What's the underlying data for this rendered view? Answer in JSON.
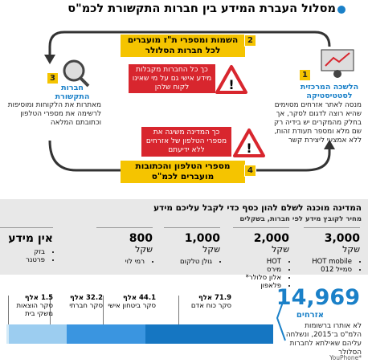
{
  "header": {
    "title": "מסלול העברת המידע בין חברות התקשורת לכמ\"ס"
  },
  "flow": {
    "step1": {
      "number": "1",
      "label": "הלשכה המרכזית לסטטיסטיקה",
      "text": "מנסה לאתר אזרחים מסוימים שהיא רוצה לדגום לסקר, אך בחלק מהמקרים יש בידיה רק שם מלא ומספר תעודת זהות, ללא אמצעי ליצירת קשר"
    },
    "step2": {
      "number": "2",
      "text": "השמות ומספרי ת\"ז מועברים לכל חברות הסלולר"
    },
    "step3": {
      "number": "3",
      "label": "חברות התקשורת",
      "text": "מאתרות את הלקוחות ומוסיפות לרשימה את מספרי הטלפון וכתובתם המלאה"
    },
    "step4": {
      "number": "4",
      "text": "מספרי הטלפון והכתובות מועברים לכמ\"ס"
    },
    "warning1": "כך כל החברות מקבלות מידע אישי גם על מי שאינו לקוח שלהן",
    "warning2": "כך המדינה משיגה את מספרי הטלפון של אזרחים ללא ידיעתם"
  },
  "prices": {
    "title": "המדינה מוכנה לשלם להון כסף כדי לקבל עליכם מידע",
    "subtitle": "מחיר לקובץ מידע לפי חברות, בשקלים",
    "columns": [
      {
        "price": "3,000",
        "unit": "שקל",
        "companies": [
          "HOT mobile",
          "סמייל 012"
        ]
      },
      {
        "price": "2,000",
        "unit": "שקל",
        "companies": [
          "HOT",
          "מירס",
          "אלון סלולר*",
          "פלאפון"
        ]
      },
      {
        "price": "1,000",
        "unit": "שקל",
        "companies": [
          "גולן טלקום"
        ]
      },
      {
        "price": "800",
        "unit": "שקל",
        "companies": [
          "רמי לוי"
        ]
      },
      {
        "price": "אין מידע",
        "companies": [
          "בזק",
          "פרטנר"
        ]
      }
    ]
  },
  "citizens": {
    "count": "14,969",
    "label": "אזרחים",
    "text": "לא אותרו ברשומות הלמ\"ס ב־2015, ונשלחה עליהם שאילתא לחברות הסלולר"
  },
  "surveys": [
    {
      "value": 71.9,
      "unit": "אלף",
      "name": "סקר כוח אדם"
    },
    {
      "value": 44.1,
      "unit": "אלף",
      "name": "סקר ביטחון אישי"
    },
    {
      "value": 32.2,
      "unit": "אלף",
      "name": "סקר חברתי"
    },
    {
      "value": 1.5,
      "unit": "אלף",
      "name": "סקר הוצאות משקי בית"
    }
  ],
  "footer": {
    "credit": "YouPhone*"
  }
}
